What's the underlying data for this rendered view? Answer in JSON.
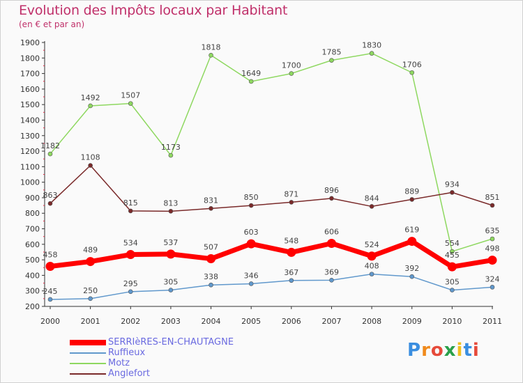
{
  "header": {
    "title": "Evolution des Impôts locaux par Habitant",
    "subtitle": "(en € et par an)"
  },
  "brand": {
    "letters": [
      "P",
      "r",
      "o",
      "x",
      "i",
      "t",
      "i"
    ]
  },
  "chart_data": {
    "type": "line",
    "title": "Evolution des Impôts locaux par Habitant",
    "subtitle": "(en € et par an)",
    "xlabel": "",
    "ylabel": "",
    "ylim": [
      200,
      1900
    ],
    "ytick_step": 100,
    "grid": false,
    "legend_position": "bottom-left",
    "categories": [
      "2000",
      "2001",
      "2002",
      "2003",
      "2004",
      "2005",
      "2006",
      "2007",
      "2008",
      "2009",
      "2010",
      "2011"
    ],
    "series": [
      {
        "name": "Motz",
        "color": "#8ed860",
        "width": 1.5,
        "values": [
          1182,
          1492,
          1507,
          1173,
          1818,
          1649,
          1700,
          1785,
          1830,
          1706,
          554,
          635
        ]
      },
      {
        "name": "Anglefort",
        "color": "#7a2a2a",
        "width": 1.5,
        "values": [
          863,
          1108,
          815,
          813,
          831,
          850,
          871,
          896,
          844,
          889,
          934,
          851
        ]
      },
      {
        "name": "Ruffieux",
        "color": "#6098cc",
        "width": 1.5,
        "values": [
          245,
          250,
          295,
          305,
          338,
          346,
          367,
          369,
          408,
          392,
          305,
          324
        ]
      },
      {
        "name": "SERRIèRES-EN-CHAUTAGNE",
        "color": "#ff0000",
        "width": 7,
        "values": [
          458,
          489,
          534,
          537,
          507,
          603,
          548,
          606,
          524,
          619,
          455,
          498
        ]
      }
    ],
    "legend_order": [
      "SERRIèRES-EN-CHAUTAGNE",
      "Ruffieux",
      "Motz",
      "Anglefort"
    ]
  }
}
